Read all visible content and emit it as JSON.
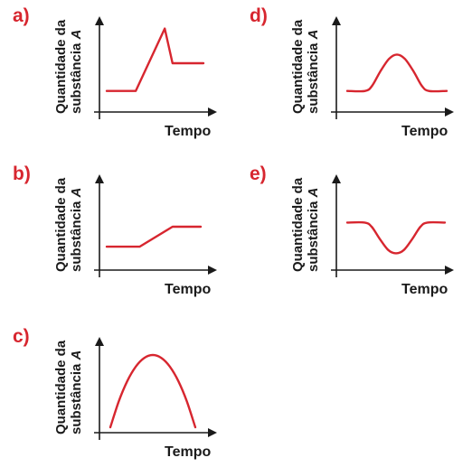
{
  "colors": {
    "curve": "#d7262f",
    "letter": "#d7262f",
    "axis": "#1a1a1a"
  },
  "chart_data": [
    {
      "id": "a",
      "panel_label": "a)",
      "type": "line",
      "ylabel_line1": "Quantidade da",
      "ylabel_line2": "substância A",
      "xlabel": "Tempo",
      "xlim": [
        0,
        1
      ],
      "ylim": [
        0,
        1
      ],
      "grid": false,
      "ticks": false,
      "series": [
        {
          "x": [
            0,
            0.3,
            0.6,
            0.68,
            1
          ],
          "y": [
            0.18,
            0.18,
            0.9,
            0.5,
            0.5
          ]
        }
      ]
    },
    {
      "id": "d",
      "panel_label": "d)",
      "type": "line",
      "ylabel_line1": "Quantidade da",
      "ylabel_line2": "substância A",
      "xlabel": "Tempo",
      "xlim": [
        0,
        1
      ],
      "ylim": [
        0,
        1
      ],
      "grid": false,
      "ticks": false,
      "series": [
        {
          "x": [
            0,
            0.18,
            0.25,
            0.33,
            0.42,
            0.5,
            0.58,
            0.67,
            0.75,
            0.82,
            1
          ],
          "y": [
            0.18,
            0.18,
            0.24,
            0.4,
            0.55,
            0.6,
            0.55,
            0.4,
            0.24,
            0.18,
            0.18
          ]
        }
      ]
    },
    {
      "id": "b",
      "panel_label": "b)",
      "type": "line",
      "ylabel_line1": "Quantidade da",
      "ylabel_line2": "substância A",
      "xlabel": "Tempo",
      "xlim": [
        0,
        1
      ],
      "ylim": [
        0,
        1
      ],
      "grid": false,
      "ticks": false,
      "series": [
        {
          "x": [
            0,
            0.35,
            0.7,
            1
          ],
          "y": [
            0.26,
            0.26,
            0.5,
            0.5
          ]
        }
      ]
    },
    {
      "id": "e",
      "panel_label": "e)",
      "type": "line",
      "ylabel_line1": "Quantidade da",
      "ylabel_line2": "substância A",
      "xlabel": "Tempo",
      "xlim": [
        0,
        1
      ],
      "ylim": [
        0,
        1
      ],
      "grid": false,
      "ticks": false,
      "series": [
        {
          "x": [
            0,
            0.18,
            0.25,
            0.33,
            0.42,
            0.5,
            0.58,
            0.67,
            0.75,
            0.82,
            1
          ],
          "y": [
            0.55,
            0.55,
            0.5,
            0.36,
            0.22,
            0.18,
            0.22,
            0.36,
            0.5,
            0.55,
            0.55
          ]
        }
      ]
    },
    {
      "id": "c",
      "panel_label": "c)",
      "type": "line",
      "ylabel_line1": "Quantidade da",
      "ylabel_line2": "substância A",
      "xlabel": "Tempo",
      "xlim": [
        0,
        1
      ],
      "ylim": [
        0,
        1
      ],
      "grid": false,
      "ticks": false,
      "series": [
        {
          "x": [
            0,
            0.1,
            0.2,
            0.3,
            0.4,
            0.5,
            0.6,
            0.7,
            0.8,
            0.9,
            1
          ],
          "y": [
            0,
            0.36,
            0.64,
            0.84,
            0.96,
            1,
            0.96,
            0.84,
            0.64,
            0.36,
            0
          ]
        }
      ]
    }
  ]
}
